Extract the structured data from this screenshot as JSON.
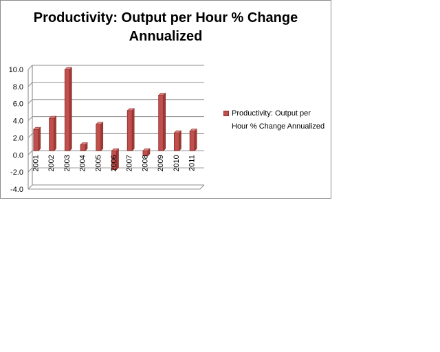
{
  "chart_data": {
    "type": "bar",
    "title": "Productivity: Output per Hour % Change Annualized",
    "categories": [
      "2001",
      "2002",
      "2003",
      "2004",
      "2005",
      "2006",
      "2007",
      "2008",
      "2009",
      "2010",
      "2011"
    ],
    "series": [
      {
        "name": "Productivity: Output per Hour % Change Annualized",
        "values": [
          2.5,
          3.8,
          9.5,
          0.7,
          3.1,
          -2.2,
          4.7,
          -0.6,
          6.5,
          2.1,
          2.3
        ]
      }
    ],
    "yticks": [
      "10.0",
      "8.0",
      "6.0",
      "4.0",
      "2.0",
      "0.0",
      "-2.0",
      "-4.0"
    ],
    "ylim": [
      -4,
      10
    ],
    "xlabel": "",
    "ylabel": "",
    "grid": true,
    "legend": "right",
    "colors": {
      "bar_fill": "#c0504d",
      "bar_edge": "#8e2b28",
      "bar_dark": "#9c3b38"
    }
  }
}
